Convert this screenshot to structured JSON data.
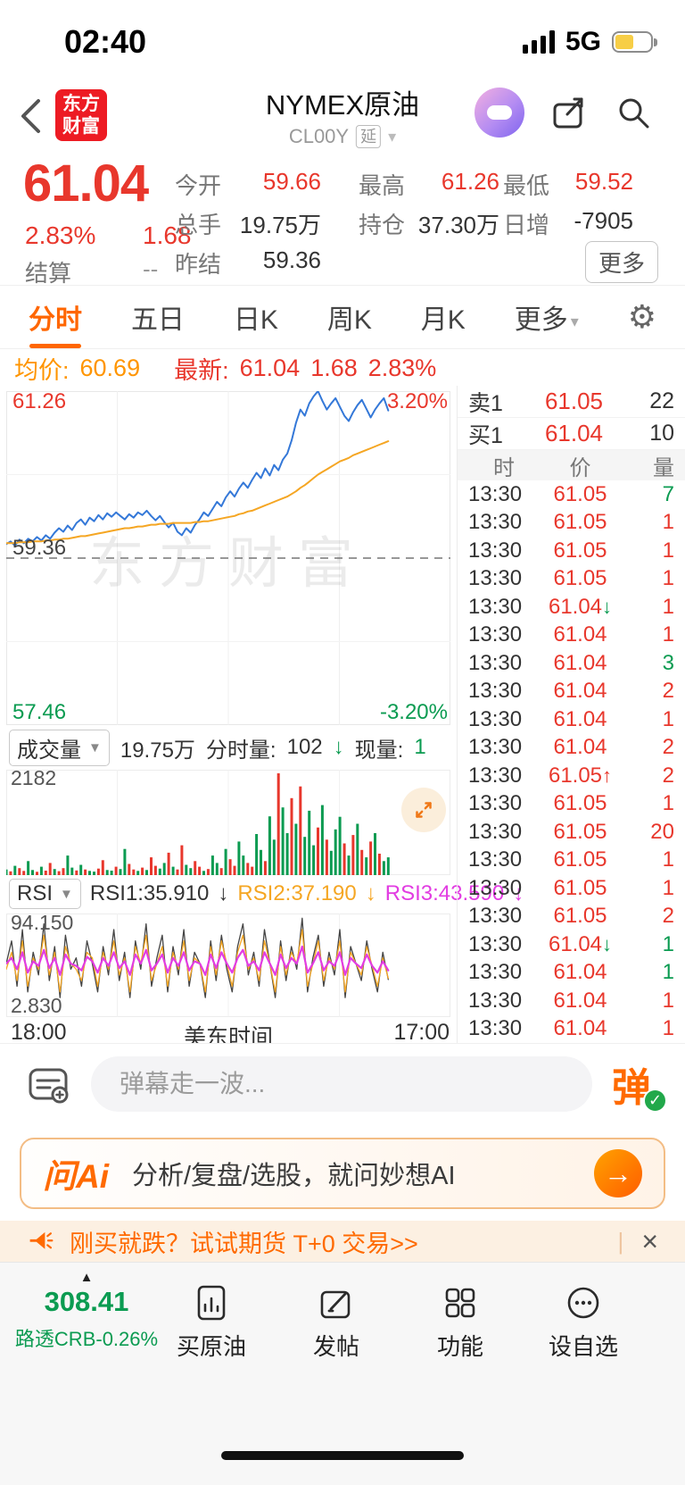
{
  "colors": {
    "red": "#e8372c",
    "green": "#0b9b51",
    "orange": "#ff6600",
    "avg_orange": "#f5a623",
    "blue": "#3478d8",
    "magenta": "#e23ce2"
  },
  "icons": {
    "gear": "⚙",
    "dropdown": "▼",
    "caret": "▾"
  },
  "status_bar": {
    "time": "02:40",
    "network": "5G"
  },
  "header": {
    "logo_top": "东方",
    "logo_bottom": "财富",
    "title": "NYMEX原油",
    "code": "CL00Y",
    "delay_badge": "延"
  },
  "quote": {
    "price": "61.04",
    "change_pct": "2.83%",
    "change": "1.68",
    "settle_label": "结算",
    "settle_value": "--",
    "more": "更多",
    "fields": [
      {
        "label": "今开",
        "value": "59.66"
      },
      {
        "label": "最高",
        "value": "61.26"
      },
      {
        "label": "最低",
        "value": "59.52"
      },
      {
        "label": "总手",
        "value": "19.75万"
      },
      {
        "label": "持仓",
        "value": "37.30万"
      },
      {
        "label": "日增",
        "value": "-7905"
      },
      {
        "label": "昨结",
        "value": "59.36"
      }
    ]
  },
  "tabs": {
    "items": [
      "分时",
      "五日",
      "日K",
      "周K",
      "月K",
      "更多"
    ]
  },
  "avg_info": {
    "avg_label": "均价:",
    "avg_value": "60.69",
    "last_label": "最新:",
    "last_value": "61.04",
    "last_change": "1.68",
    "last_pct": "2.83%"
  },
  "chart_labels": {
    "high": "61.26",
    "high_pct": "3.20%",
    "prev_close": "59.36",
    "low": "57.46",
    "low_pct": "-3.20%",
    "watermark": "东方财富"
  },
  "order_book": {
    "sell_label": "卖1",
    "sell_price": "61.05",
    "sell_qty": "22",
    "buy_label": "买1",
    "buy_price": "61.04",
    "buy_qty": "10"
  },
  "tape": {
    "headers": [
      "时",
      "价",
      "量"
    ],
    "rows": [
      {
        "t": "13:30",
        "p": "61.05",
        "a": "",
        "q": "7",
        "qc": "g"
      },
      {
        "t": "13:30",
        "p": "61.05",
        "a": "",
        "q": "1",
        "qc": "r"
      },
      {
        "t": "13:30",
        "p": "61.05",
        "a": "",
        "q": "1",
        "qc": "r"
      },
      {
        "t": "13:30",
        "p": "61.05",
        "a": "",
        "q": "1",
        "qc": "r"
      },
      {
        "t": "13:30",
        "p": "61.04",
        "a": "↓",
        "q": "1",
        "qc": "r"
      },
      {
        "t": "13:30",
        "p": "61.04",
        "a": "",
        "q": "1",
        "qc": "r"
      },
      {
        "t": "13:30",
        "p": "61.04",
        "a": "",
        "q": "3",
        "qc": "g"
      },
      {
        "t": "13:30",
        "p": "61.04",
        "a": "",
        "q": "2",
        "qc": "r"
      },
      {
        "t": "13:30",
        "p": "61.04",
        "a": "",
        "q": "1",
        "qc": "r"
      },
      {
        "t": "13:30",
        "p": "61.04",
        "a": "",
        "q": "2",
        "qc": "r"
      },
      {
        "t": "13:30",
        "p": "61.05",
        "a": "↑",
        "q": "2",
        "qc": "r"
      },
      {
        "t": "13:30",
        "p": "61.05",
        "a": "",
        "q": "1",
        "qc": "r"
      },
      {
        "t": "13:30",
        "p": "61.05",
        "a": "",
        "q": "20",
        "qc": "r"
      },
      {
        "t": "13:30",
        "p": "61.05",
        "a": "",
        "q": "1",
        "qc": "r"
      },
      {
        "t": "13:30",
        "p": "61.05",
        "a": "",
        "q": "1",
        "qc": "r"
      },
      {
        "t": "13:30",
        "p": "61.05",
        "a": "",
        "q": "2",
        "qc": "r"
      },
      {
        "t": "13:30",
        "p": "61.04",
        "a": "↓",
        "q": "1",
        "qc": "g"
      },
      {
        "t": "13:30",
        "p": "61.04",
        "a": "",
        "q": "1",
        "qc": "g"
      },
      {
        "t": "13:30",
        "p": "61.04",
        "a": "",
        "q": "1",
        "qc": "r"
      },
      {
        "t": "13:30",
        "p": "61.04",
        "a": "",
        "q": "1",
        "qc": "r"
      }
    ]
  },
  "volume_panel": {
    "name": "成交量",
    "total": "19.75万",
    "minute_label": "分时量:",
    "minute_value": "102",
    "minute_arrow": "↓",
    "current_label": "现量:",
    "current_value": "1",
    "max_label": "2182"
  },
  "rsi_panel": {
    "name": "RSI",
    "rsi1": "RSI1:35.910",
    "rsi2": "RSI2:37.190",
    "rsi3": "RSI3:43.590",
    "arrow": "↓"
  },
  "time_axis": {
    "start": "18:00",
    "center": "美东时间",
    "end": "17:00"
  },
  "danmu": {
    "placeholder": "弹幕走一波...",
    "send": "弹",
    "check": "✓"
  },
  "ai_banner": {
    "logo": "问Ai",
    "text": "分析/复盘/选股，就问妙想AI",
    "arrow": "→"
  },
  "promo": {
    "text": "刚买就跌？试试期货 T+0 交易>>",
    "close": "×"
  },
  "bottom_nav": {
    "indicator": "▲",
    "crb_value": "308.41",
    "crb_label": "路透CRB-0.26%",
    "items": [
      "买原油",
      "发帖",
      "功能",
      "设自选"
    ]
  },
  "chart_data": [
    {
      "type": "line",
      "name": "minute-price",
      "ylim": [
        57.46,
        61.26
      ],
      "prev_close": 59.36,
      "x_extent": 0.86,
      "series": [
        {
          "name": "price",
          "color": "#3478d8",
          "width": 2,
          "values": [
            59.52,
            59.55,
            59.5,
            59.57,
            59.53,
            59.58,
            59.55,
            59.6,
            59.56,
            59.62,
            59.58,
            59.65,
            59.7,
            59.66,
            59.73,
            59.68,
            59.76,
            59.8,
            59.74,
            59.82,
            59.78,
            59.85,
            59.8,
            59.87,
            59.83,
            59.88,
            59.84,
            59.8,
            59.86,
            59.82,
            59.88,
            59.85,
            59.9,
            59.84,
            59.79,
            59.84,
            59.77,
            59.71,
            59.76,
            59.66,
            59.62,
            59.7,
            59.65,
            59.74,
            59.8,
            59.88,
            59.84,
            59.92,
            60.0,
            59.95,
            60.05,
            60.12,
            60.06,
            60.15,
            60.22,
            60.16,
            60.25,
            60.33,
            60.27,
            60.38,
            60.3,
            60.42,
            60.36,
            60.48,
            60.55,
            60.7,
            60.9,
            61.05,
            60.98,
            61.12,
            61.2,
            61.26,
            61.15,
            61.05,
            61.12,
            61.18,
            61.08,
            60.98,
            60.92,
            61.02,
            61.1,
            61.16,
            61.06,
            60.96,
            61.05,
            61.12,
            61.18,
            61.04
          ]
        },
        {
          "name": "avg",
          "color": "#f5a623",
          "width": 2,
          "values": [
            59.53,
            59.53,
            59.53,
            59.54,
            59.54,
            59.54,
            59.55,
            59.55,
            59.55,
            59.56,
            59.56,
            59.57,
            59.57,
            59.58,
            59.58,
            59.59,
            59.6,
            59.61,
            59.61,
            59.62,
            59.63,
            59.64,
            59.65,
            59.66,
            59.67,
            59.68,
            59.69,
            59.7,
            59.7,
            59.71,
            59.72,
            59.72,
            59.73,
            59.74,
            59.74,
            59.75,
            59.75,
            59.75,
            59.76,
            59.76,
            59.76,
            59.76,
            59.76,
            59.77,
            59.77,
            59.78,
            59.78,
            59.79,
            59.8,
            59.81,
            59.82,
            59.83,
            59.84,
            59.86,
            59.87,
            59.89,
            59.9,
            59.92,
            59.94,
            59.96,
            59.98,
            60.0,
            60.02,
            60.04,
            60.06,
            60.09,
            60.12,
            60.16,
            60.19,
            60.23,
            60.27,
            60.31,
            60.34,
            60.37,
            60.4,
            60.43,
            60.46,
            60.48,
            60.5,
            60.53,
            60.55,
            60.57,
            60.59,
            60.61,
            60.63,
            60.65,
            60.67,
            60.69
          ]
        }
      ]
    },
    {
      "type": "bar",
      "name": "volume",
      "ylim": [
        0,
        2182
      ],
      "x_extent": 0.86,
      "values": [
        120,
        80,
        200,
        150,
        90,
        300,
        110,
        70,
        180,
        95,
        260,
        130,
        85,
        150,
        420,
        160,
        100,
        220,
        120,
        90,
        75,
        140,
        320,
        110,
        95,
        180,
        130,
        560,
        240,
        120,
        90,
        160,
        110,
        380,
        200,
        140,
        260,
        480,
        180,
        120,
        640,
        220,
        150,
        300,
        180,
        90,
        130,
        420,
        260,
        150,
        560,
        340,
        200,
        720,
        420,
        260,
        180,
        880,
        540,
        300,
        1260,
        760,
        2182,
        1450,
        900,
        1650,
        1100,
        1900,
        820,
        1380,
        640,
        1020,
        1500,
        760,
        520,
        980,
        1250,
        680,
        420,
        860,
        1100,
        540,
        380,
        720,
        900,
        460,
        300,
        380
      ],
      "colors": "grgrrggrgrrgrrggrgrggrrggrggrrgrgrrggrgrrggrrgrggrgrrggrrggrggrggrgrgggrgrgggrgrgrgrgrgg"
    },
    {
      "type": "line",
      "name": "rsi",
      "ylim": [
        2.83,
        94.15
      ],
      "x_extent": 0.86,
      "series": [
        {
          "name": "RSI1",
          "color": "#444444",
          "width": 1.3,
          "values": [
            50,
            70,
            30,
            80,
            25,
            60,
            40,
            85,
            35,
            65,
            20,
            75,
            45,
            55,
            30,
            70,
            50,
            25,
            65,
            40,
            80,
            35,
            60,
            20,
            70,
            45,
            85,
            30,
            55,
            75,
            25,
            65,
            40,
            80,
            30,
            60,
            50,
            20,
            70,
            35,
            75,
            45,
            25,
            65,
            85,
            40,
            60,
            30,
            80,
            50,
            20,
            70,
            35,
            65,
            45,
            90,
            25,
            55,
            75,
            30,
            60,
            40,
            80,
            20,
            65,
            50,
            35,
            70,
            45,
            25,
            60,
            36
          ]
        },
        {
          "name": "RSI2",
          "color": "#f5a623",
          "width": 1.3,
          "values": [
            45,
            60,
            35,
            70,
            30,
            55,
            45,
            75,
            40,
            60,
            25,
            65,
            50,
            45,
            35,
            60,
            55,
            30,
            60,
            45,
            70,
            40,
            55,
            25,
            65,
            50,
            75,
            35,
            50,
            65,
            30,
            60,
            45,
            70,
            35,
            55,
            50,
            25,
            65,
            40,
            70,
            50,
            30,
            60,
            75,
            45,
            55,
            35,
            70,
            50,
            25,
            65,
            40,
            60,
            50,
            80,
            30,
            50,
            70,
            35,
            55,
            45,
            70,
            25,
            60,
            50,
            40,
            65,
            48,
            30,
            55,
            37
          ]
        },
        {
          "name": "RSI3",
          "color": "#e23ce2",
          "width": 2.2,
          "values": [
            50,
            55,
            45,
            60,
            42,
            52,
            48,
            62,
            46,
            55,
            40,
            58,
            50,
            48,
            44,
            56,
            52,
            42,
            55,
            48,
            60,
            46,
            52,
            40,
            58,
            50,
            62,
            44,
            50,
            58,
            42,
            55,
            48,
            60,
            44,
            52,
            50,
            40,
            58,
            46,
            60,
            50,
            42,
            55,
            62,
            48,
            52,
            44,
            60,
            50,
            40,
            58,
            46,
            55,
            50,
            65,
            42,
            50,
            60,
            44,
            52,
            48,
            60,
            40,
            55,
            50,
            46,
            58,
            48,
            42,
            52,
            44
          ]
        }
      ]
    }
  ]
}
